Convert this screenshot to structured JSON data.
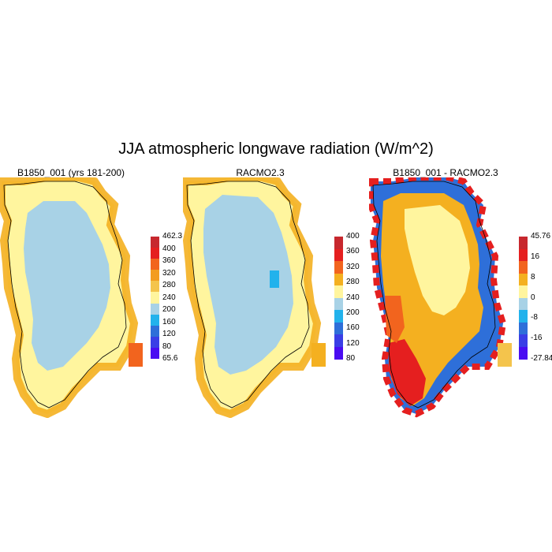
{
  "title": "JJA atmospheric longwave radiation (W/m^2)",
  "panels": [
    {
      "title": "B1850_001 (yrs 181-200)",
      "colorbar": {
        "labels": [
          "462.3",
          "400",
          "360",
          "320",
          "280",
          "240",
          "200",
          "160",
          "120",
          "80",
          "65.6"
        ],
        "colors": [
          "#c7282e",
          "#e51f1f",
          "#f2641e",
          "#f39c1f",
          "#f4c44c",
          "#fff59e",
          "#a8d2e6",
          "#22b2ec",
          "#2e6fd9",
          "#3a3ee6",
          "#4a0cf2"
        ]
      },
      "fields": {
        "interior": "#a8d2e6",
        "margin": "#fff59e",
        "edge": "#f4b020",
        "hot": "#f2641e"
      }
    },
    {
      "title": "RACMO2.3",
      "colorbar": {
        "labels": [
          "400",
          "360",
          "320",
          "280",
          "240",
          "200",
          "160",
          "120",
          "80"
        ],
        "colors": [
          "#c7282e",
          "#e51f1f",
          "#f2641e",
          "#f4b020",
          "#fff59e",
          "#a8d2e6",
          "#22b2ec",
          "#2e6fd9",
          "#3a3ee6",
          "#4a0cf2"
        ]
      },
      "fields": {
        "interior": "#a8d2e6",
        "margin": "#fff59e",
        "edge": "#f4b020",
        "hot": "#22b2ec"
      }
    },
    {
      "title": "B1850_001 - RACMO2.3",
      "colorbar": {
        "labels": [
          "45.76",
          "16",
          "8",
          "0",
          "-8",
          "-16",
          "-27.84"
        ],
        "colors": [
          "#c7282e",
          "#e51f1f",
          "#f2641e",
          "#f4b020",
          "#fff59e",
          "#a8d2e6",
          "#22b2ec",
          "#2e6fd9",
          "#3a3ee6",
          "#4a0cf2"
        ]
      },
      "fields": {
        "interior": "#fff59e",
        "margin": "#f4c44c",
        "edge": "#e51f1f",
        "hot": "#2e6fd9"
      }
    }
  ]
}
